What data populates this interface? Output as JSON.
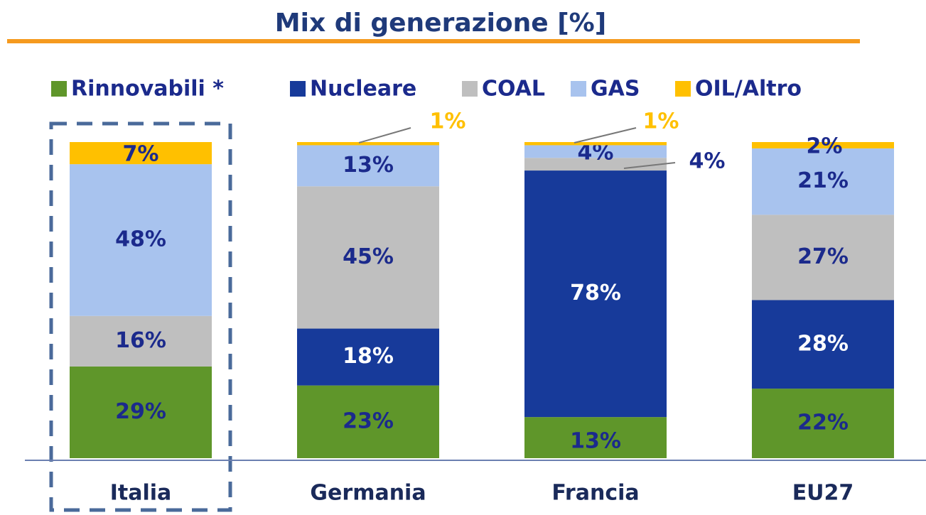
{
  "chart_data": {
    "type": "stacked-bar",
    "title": "Mix di generazione [%]",
    "categories": [
      "Italia",
      "Germania",
      "Francia",
      "EU27"
    ],
    "ylim": [
      0,
      100
    ],
    "series": [
      {
        "name": "Rinnovabili *",
        "color": "#5f962a",
        "values": [
          29,
          23,
          13,
          22
        ],
        "value_labels": [
          "29%",
          "23%",
          "13%",
          "22%"
        ]
      },
      {
        "name": "Nucleare",
        "color": "#173a9a",
        "values": [
          0,
          18,
          78,
          28
        ],
        "value_labels": [
          null,
          "18%",
          "78%",
          "28%"
        ]
      },
      {
        "name": "COAL",
        "color": "#bfbfbf",
        "values": [
          16,
          45,
          4,
          27
        ],
        "value_labels": [
          "16%",
          "45%",
          "4%",
          "27%"
        ]
      },
      {
        "name": "GAS",
        "color": "#a8c3ee",
        "values": [
          48,
          13,
          4,
          21
        ],
        "value_labels": [
          "48%",
          "13%",
          "4%",
          "21%"
        ]
      },
      {
        "name": "OIL/Altro",
        "color": "#ffc000",
        "values": [
          7,
          1,
          1,
          2
        ],
        "value_labels": [
          "7%",
          "1%",
          "1%",
          "2%"
        ]
      }
    ]
  }
}
